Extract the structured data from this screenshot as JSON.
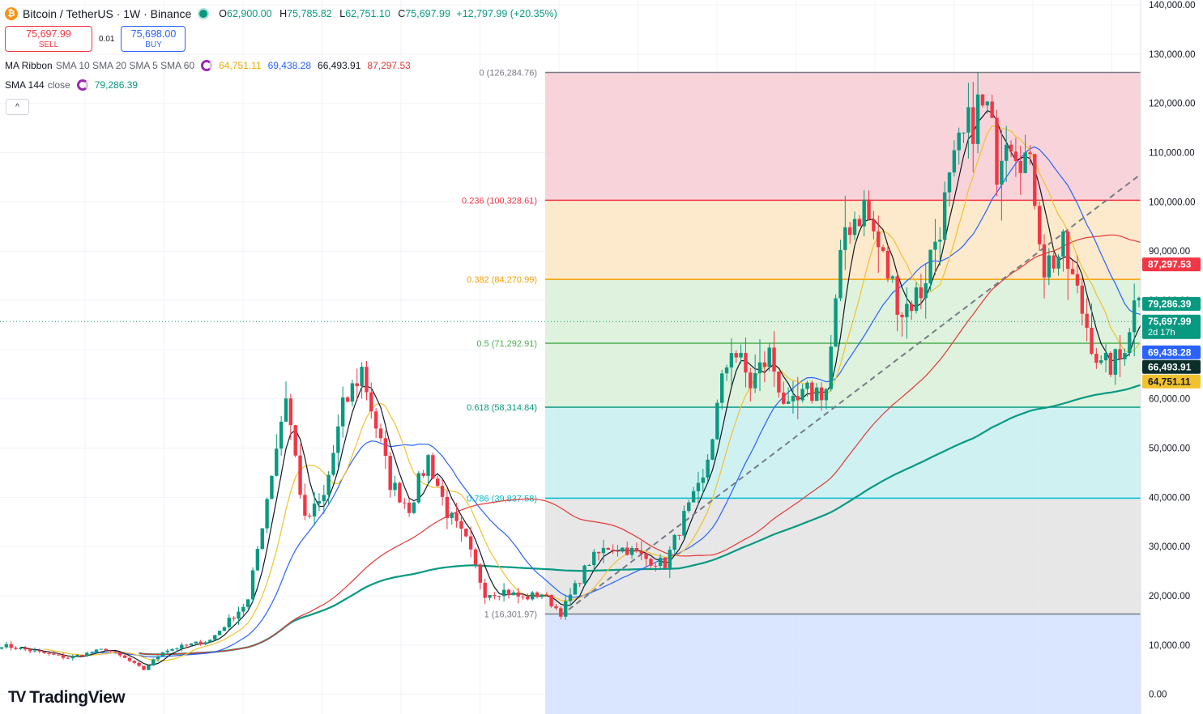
{
  "header": {
    "coin_glyph": "₿",
    "symbol": "Bitcoin / TetherUS · 1W · Binance",
    "open_label": "O",
    "open": "62,900.00",
    "high_label": "H",
    "high": "75,785.82",
    "low_label": "L",
    "low": "62,751.10",
    "close_label": "C",
    "close": "75,697.99",
    "change": "+12,797.99 (+20.35%)"
  },
  "trade": {
    "sell_price": "75,697.99",
    "sell_label": "SELL",
    "spread": "0.01",
    "buy_price": "75,698.00",
    "buy_label": "BUY"
  },
  "indicators": {
    "ribbon_name": "MA Ribbon",
    "ribbon_params": "SMA 10 SMA 20 SMA 5 SMA 60",
    "ribbon_values": [
      "64,751.11",
      "69,438.28",
      "66,493.91",
      "87,297.53"
    ],
    "sma144_name": "SMA 144",
    "sma144_params": "close",
    "sma144_value": "79,286.39",
    "collapse_glyph": "^"
  },
  "logo": {
    "mark": "TV",
    "text": "TradingView"
  },
  "colors": {
    "up": "#089981",
    "down": "#f23645",
    "sma5": "#131722",
    "sma10": "#f2c12e",
    "sma20": "#2962ff",
    "sma60": "#e53935",
    "sma144": "#089981"
  },
  "chart_data": {
    "type": "candlestick",
    "interval": "1W",
    "y_scale": "linear",
    "ylim": [
      -4000,
      141000
    ],
    "y_ticks": [
      "140,000.00",
      "130,000.00",
      "120,000.00",
      "110,000.00",
      "100,000.00",
      "90,000.00",
      "80,000.00",
      "70,000.00",
      "60,000.00",
      "50,000.00",
      "40,000.00",
      "30,000.00",
      "20,000.00",
      "10,000.00",
      "0.00"
    ],
    "y_tick_values": [
      140000,
      130000,
      120000,
      110000,
      100000,
      90000,
      80000,
      70000,
      60000,
      50000,
      40000,
      30000,
      20000,
      10000,
      0
    ],
    "price_anchors": [
      [
        0,
        10000
      ],
      [
        14,
        7400
      ],
      [
        22,
        9200
      ],
      [
        26,
        7300
      ],
      [
        30,
        5000
      ],
      [
        34,
        8800
      ],
      [
        44,
        11000
      ],
      [
        52,
        19000
      ],
      [
        56,
        40000
      ],
      [
        60,
        61000
      ],
      [
        64,
        35000
      ],
      [
        68,
        40000
      ],
      [
        72,
        58000
      ],
      [
        76,
        66000
      ],
      [
        82,
        43000
      ],
      [
        86,
        38000
      ],
      [
        90,
        48000
      ],
      [
        94,
        37000
      ],
      [
        98,
        31000
      ],
      [
        102,
        20500
      ],
      [
        106,
        21000
      ],
      [
        110,
        19500
      ],
      [
        114,
        20500
      ],
      [
        118,
        16500
      ],
      [
        124,
        27000
      ],
      [
        128,
        30000
      ],
      [
        132,
        29500
      ],
      [
        136,
        27500
      ],
      [
        140,
        26500
      ],
      [
        144,
        36000
      ],
      [
        148,
        43000
      ],
      [
        152,
        63000
      ],
      [
        154,
        71000
      ],
      [
        158,
        63000
      ],
      [
        162,
        69000
      ],
      [
        166,
        57000
      ],
      [
        170,
        61000
      ],
      [
        174,
        62000
      ],
      [
        178,
        95000
      ],
      [
        182,
        99000
      ],
      [
        186,
        88000
      ],
      [
        190,
        78000
      ],
      [
        194,
        82000
      ],
      [
        198,
        96000
      ],
      [
        202,
        110000
      ],
      [
        206,
        119000
      ],
      [
        208,
        118000
      ],
      [
        210,
        108000
      ],
      [
        212,
        116000
      ],
      [
        216,
        109000
      ],
      [
        218,
        102000
      ],
      [
        220,
        87000
      ],
      [
        224,
        90000
      ],
      [
        228,
        78000
      ],
      [
        232,
        66000
      ],
      [
        236,
        68000
      ],
      [
        240,
        83000
      ],
      [
        242,
        78000
      ],
      [
        244,
        70000
      ],
      [
        246,
        61000
      ],
      [
        250,
        62000
      ],
      [
        252,
        62900
      ],
      [
        253,
        75698
      ]
    ],
    "fib_high": 126284.76,
    "fib_levels": [
      {
        "ratio": "0",
        "value": 126284.76,
        "label": "0 (126,284.76)",
        "color": "#787b86",
        "fill": "#f7cdd3"
      },
      {
        "ratio": "0.236",
        "value": 100328.61,
        "label": "0.236 (100,328.61)",
        "color": "#f23645",
        "fill": "#fde6c4"
      },
      {
        "ratio": "0.382",
        "value": 84270.99,
        "label": "0.382 (84,270.99)",
        "color": "#f59f00",
        "fill": "#d9f0d7"
      },
      {
        "ratio": "0.5",
        "value": 71292.91,
        "label": "0.5 (71,292.91)",
        "color": "#4caf50",
        "fill": "#d9f0d7"
      },
      {
        "ratio": "0.618",
        "value": 58314.84,
        "label": "0.618 (58,314.84)",
        "color": "#089981",
        "fill": "#c8eff0"
      },
      {
        "ratio": "0.786",
        "value": 39837.58,
        "label": "0.786 (39,837.58)",
        "color": "#00bcd4",
        "fill": "#e3e3e3"
      },
      {
        "ratio": "1",
        "value": 16301.97,
        "label": "1 (16,301.97)",
        "color": "#787b86",
        "fill": "#d3e0ff"
      }
    ],
    "trendline": {
      "from": [
        118,
        16000
      ],
      "to": [
        260,
        120000
      ]
    },
    "last_price": 75697.99,
    "price_tags": [
      {
        "text": "87,297.53",
        "value": 87297.53,
        "bg": "#f23645",
        "fg": "#ffffff"
      },
      {
        "text": "79,286.39",
        "value": 79286.39,
        "bg": "#089981",
        "fg": "#ffffff"
      },
      {
        "text": "75,697.99",
        "sub": "2d 17h",
        "value": 75697.99,
        "bg": "#089981",
        "fg": "#ffffff"
      },
      {
        "text": "69,438.28",
        "value": 69438.28,
        "bg": "#2962ff",
        "fg": "#ffffff"
      },
      {
        "text": "66,493.91",
        "value": 66493.91,
        "bg": "#0b2e2b",
        "fg": "#ffffff"
      },
      {
        "text": "64,751.11",
        "value": 64751.11,
        "bg": "#f2c12e",
        "fg": "#131722"
      }
    ],
    "ma_series": [
      {
        "name": "SMA 5",
        "period": 5,
        "color": "#131722"
      },
      {
        "name": "SMA 10",
        "period": 10,
        "color": "#f2c12e"
      },
      {
        "name": "SMA 20",
        "period": 20,
        "color": "#2962ff"
      },
      {
        "name": "SMA 60",
        "period": 60,
        "color": "#e53935"
      },
      {
        "name": "SMA 144",
        "period": 144,
        "color": "#089981"
      }
    ]
  }
}
